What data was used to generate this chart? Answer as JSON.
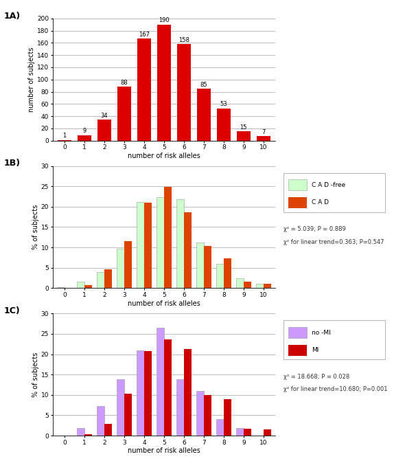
{
  "panel_A": {
    "label": "1A)",
    "x": [
      0,
      1,
      2,
      3,
      4,
      5,
      6,
      7,
      8,
      9,
      10
    ],
    "values": [
      1,
      9,
      34,
      88,
      167,
      190,
      158,
      85,
      53,
      15,
      7
    ],
    "bar_color": "#DD0000",
    "ylabel": "number of subjects",
    "xlabel": "number of risk alleles",
    "ylim": [
      0,
      200
    ],
    "yticks": [
      0,
      20,
      40,
      60,
      80,
      100,
      120,
      140,
      160,
      180,
      200
    ]
  },
  "panel_B": {
    "label": "1B)",
    "x": [
      0,
      1,
      2,
      3,
      4,
      5,
      6,
      7,
      8,
      9,
      10
    ],
    "cad_free": [
      0.3,
      1.5,
      4.0,
      9.7,
      21.2,
      22.3,
      21.8,
      11.2,
      6.0,
      2.5,
      1.0
    ],
    "cad": [
      0.0,
      0.8,
      4.6,
      11.6,
      21.0,
      24.8,
      18.6,
      10.3,
      7.3,
      1.6,
      1.0
    ],
    "color_free": "#CCFFCC",
    "color_cad": "#DD4400",
    "ylabel": "% of subjects",
    "xlabel": "number of risk alleles",
    "ylim": [
      0,
      30
    ],
    "yticks": [
      0,
      5,
      10,
      15,
      20,
      25,
      30
    ],
    "legend_labels": [
      "C A D -free",
      "C A D"
    ],
    "annotation_line1": "χ² = 5.039; P = 0.889",
    "annotation_line2": "χ² for linear trend=0.363; P=0.547"
  },
  "panel_C": {
    "label": "1C)",
    "x": [
      0,
      1,
      2,
      3,
      4,
      5,
      6,
      7,
      8,
      9,
      10
    ],
    "no_mi": [
      0.0,
      1.8,
      7.2,
      13.8,
      21.0,
      26.5,
      13.9,
      11.0,
      4.0,
      1.9,
      0.0
    ],
    "mi": [
      0.0,
      0.3,
      2.8,
      10.3,
      20.7,
      23.6,
      21.3,
      10.0,
      8.9,
      1.7,
      1.5
    ],
    "color_no_mi": "#CC99FF",
    "color_mi": "#CC0000",
    "ylabel": "% of subjects",
    "xlabel": "number of risk alleles",
    "ylim": [
      0,
      30
    ],
    "yticks": [
      0,
      5,
      10,
      15,
      20,
      25,
      30
    ],
    "legend_labels": [
      "no -MI",
      "MI"
    ],
    "annotation_line1": "χ² = 18.668; P = 0.028",
    "annotation_line2": "χ² for linear trend=10.680; P=0.001"
  },
  "background_color": "#FFFFFF",
  "grid_color": "#BBBBBB",
  "label_fontsize": 7,
  "tick_fontsize": 6.5,
  "bar_value_fontsize": 6,
  "panel_label_fontsize": 9,
  "annotation_fontsize": 6,
  "legend_fontsize": 6.5
}
